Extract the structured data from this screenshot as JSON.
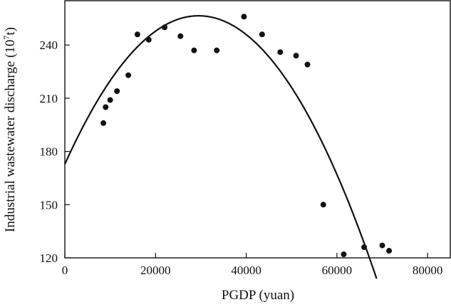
{
  "chart_data": {
    "type": "scatter",
    "xlabel": "PGDP (yuan)",
    "ylabel": "Industrial wastewater discharge (10",
    "ylabel_sup": "7",
    "ylabel_end": "t)",
    "xlim": [
      0,
      85000
    ],
    "ylim": [
      120,
      265
    ],
    "xticks": [
      0,
      20000,
      40000,
      60000,
      80000
    ],
    "yticks": [
      120,
      150,
      180,
      210,
      240
    ],
    "grid": false,
    "series": [
      {
        "kind": "points",
        "x": [
          8500,
          9000,
          10000,
          11500,
          14000,
          16000,
          18500,
          22000,
          25500,
          28500,
          33500,
          39500,
          43500,
          47500,
          51000,
          53500,
          57000,
          61500,
          66000,
          70000,
          71500
        ],
        "y": [
          196,
          205,
          209,
          214,
          223,
          246,
          243,
          250,
          245,
          237,
          237,
          256,
          246,
          236,
          234,
          229,
          150,
          122,
          126,
          127,
          124
        ]
      },
      {
        "kind": "fit-curve",
        "vertex_x": 29500,
        "vertex_y": 256.5,
        "curvature": 9.62e-08,
        "x_end": 68900
      }
    ]
  }
}
